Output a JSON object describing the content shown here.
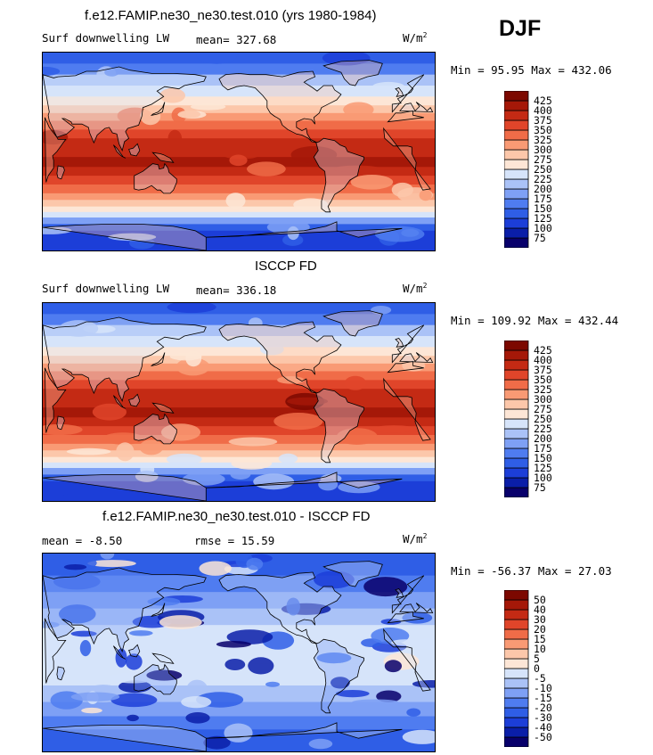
{
  "season": "DJF",
  "panels": [
    {
      "title": "f.e12.FAMIP.ne30_ne30.test.010 (yrs 1980-1984)",
      "left_label": "Surf downwelling LW",
      "stat_label": "mean=",
      "stat_value": "327.68",
      "units": "W/m",
      "units_sup": "2",
      "minmax": "Min =  95.95 Max = 432.06"
    },
    {
      "title": "ISCCP FD",
      "left_label": "Surf downwelling LW",
      "stat_label": "mean=",
      "stat_value": "336.18",
      "units": "W/m",
      "units_sup": "2",
      "minmax": "Min = 109.92 Max = 432.44"
    },
    {
      "title": "f.e12.FAMIP.ne30_ne30.test.010 - ISCCP FD",
      "mean_label": "mean =",
      "mean_value": "-8.50",
      "rmse_label": "rmse =",
      "rmse_value": "15.59",
      "units": "W/m",
      "units_sup": "2",
      "minmax": "Min = -56.37 Max =  27.03"
    }
  ],
  "chart_data": [
    {
      "type": "heatmap",
      "title": "f.e12.FAMIP.ne30_ne30.test.010 (yrs 1980-1984)",
      "variable": "Surf downwelling LW",
      "units": "W/m2",
      "mean": 327.68,
      "min": 95.95,
      "max": 432.06,
      "colorbar": {
        "levels": [
          75,
          100,
          125,
          150,
          175,
          200,
          225,
          250,
          275,
          300,
          325,
          350,
          375,
          400,
          425
        ],
        "colors": [
          "#08006b",
          "#0a1ea8",
          "#1c3ed8",
          "#2f5ee6",
          "#4f7cf0",
          "#7ea0f5",
          "#aac2f7",
          "#d6e4fa",
          "#fde6d6",
          "#fcc7aa",
          "#f99a74",
          "#f06c48",
          "#e0452a",
          "#c42a14",
          "#a51808",
          "#7c0800"
        ]
      }
    },
    {
      "type": "heatmap",
      "title": "ISCCP FD",
      "variable": "Surf downwelling LW",
      "units": "W/m2",
      "mean": 336.18,
      "min": 109.92,
      "max": 432.44,
      "colorbar": {
        "levels": [
          75,
          100,
          125,
          150,
          175,
          200,
          225,
          250,
          275,
          300,
          325,
          350,
          375,
          400,
          425
        ],
        "colors": [
          "#08006b",
          "#0a1ea8",
          "#1c3ed8",
          "#2f5ee6",
          "#4f7cf0",
          "#7ea0f5",
          "#aac2f7",
          "#d6e4fa",
          "#fde6d6",
          "#fcc7aa",
          "#f99a74",
          "#f06c48",
          "#e0452a",
          "#c42a14",
          "#a51808",
          "#7c0800"
        ]
      }
    },
    {
      "type": "heatmap",
      "title": "f.e12.FAMIP.ne30_ne30.test.010 - ISCCP FD",
      "units": "W/m2",
      "mean": -8.5,
      "rmse": 15.59,
      "min": -56.37,
      "max": 27.03,
      "colorbar": {
        "levels": [
          -50,
          -40,
          -30,
          -20,
          -15,
          -10,
          -5,
          0,
          5,
          10,
          15,
          20,
          30,
          40,
          50
        ],
        "colors": [
          "#08006b",
          "#0a1ea8",
          "#1c3ed8",
          "#2f5ee6",
          "#4f7cf0",
          "#7ea0f5",
          "#aac2f7",
          "#d6e4fa",
          "#fde6d6",
          "#fcc7aa",
          "#f99a74",
          "#f06c48",
          "#e0452a",
          "#c42a14",
          "#a51808",
          "#7c0800"
        ]
      }
    }
  ]
}
